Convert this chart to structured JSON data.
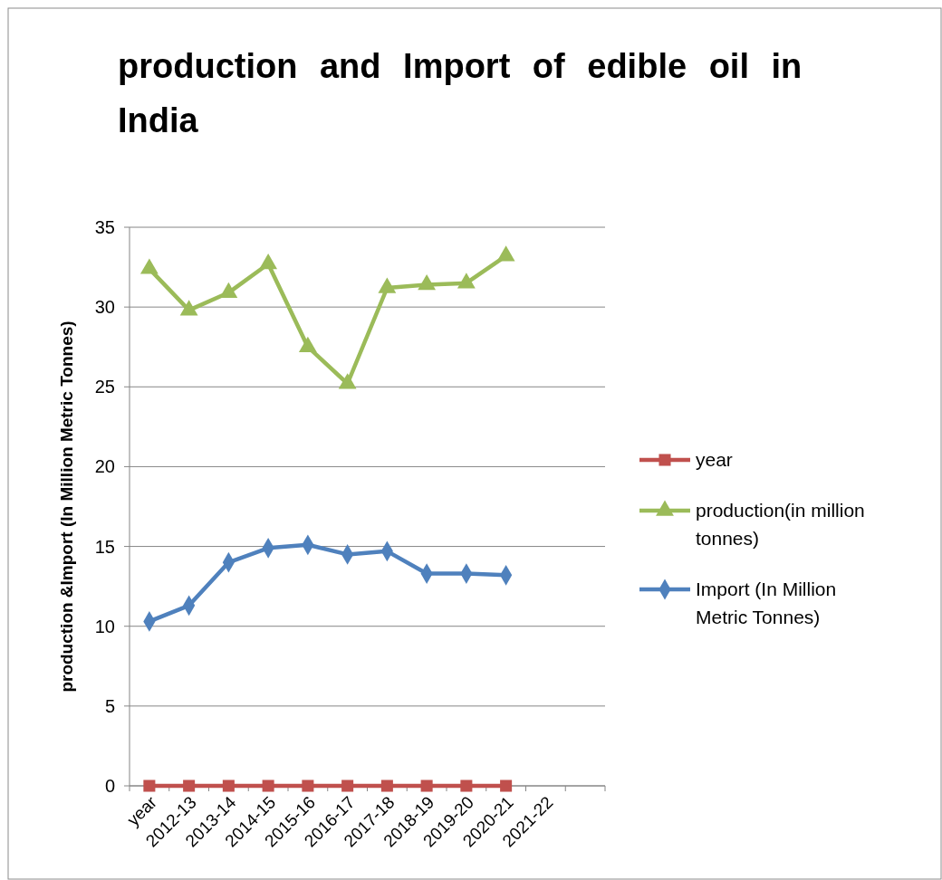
{
  "chart_data": {
    "type": "line",
    "title": "production and Import of edible oil in India",
    "ylabel": "production &Import (In Million Metric Tonnes)",
    "categories": [
      "year",
      "2012-13",
      "2013-14",
      "2014-15",
      "2015-16",
      "2016-17",
      "2017-18",
      "2018-19",
      "2019-20",
      "2020-21",
      "2021-22",
      null
    ],
    "ylim": [
      0,
      35
    ],
    "yticks": [
      0,
      5,
      10,
      15,
      20,
      25,
      30,
      35
    ],
    "grid": "y",
    "legend": "right",
    "series": [
      {
        "name": "year",
        "color": "#c0504d",
        "marker": "square",
        "values": [
          0,
          0,
          0,
          0,
          0,
          0,
          0,
          0,
          0,
          0,
          null,
          null
        ]
      },
      {
        "name": "production(in million tonnes)",
        "color": "#9bbb59",
        "marker": "triangle",
        "values": [
          32.4,
          29.8,
          30.9,
          32.7,
          27.5,
          25.2,
          31.2,
          31.4,
          31.5,
          33.2,
          null,
          null
        ]
      },
      {
        "name": "Import (In Million Metric Tonnes)",
        "color": "#4f81bd",
        "marker": "diamond",
        "values": [
          10.3,
          11.3,
          14.0,
          14.9,
          15.1,
          14.5,
          14.7,
          13.3,
          13.3,
          13.2,
          null,
          null
        ]
      }
    ]
  }
}
